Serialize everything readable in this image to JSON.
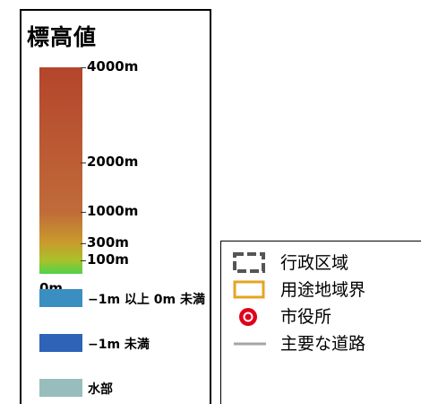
{
  "elevation_legend": {
    "title": "標高値",
    "gradient_stops": [
      {
        "elevation_m": 4000,
        "color": "#b4452b"
      },
      {
        "elevation_m": 1000,
        "color": "#c06b3a"
      },
      {
        "elevation_m": 300,
        "color": "#c99b2c"
      },
      {
        "elevation_m": 100,
        "color": "#a9c12b"
      },
      {
        "elevation_m": 0,
        "color": "#4fd34a"
      }
    ],
    "ticks": [
      {
        "label": "4000m",
        "elevation_m": 4000
      },
      {
        "label": "2000m",
        "elevation_m": 2000
      },
      {
        "label": "1000m",
        "elevation_m": 1000
      },
      {
        "label": "300m",
        "elevation_m": 300
      },
      {
        "label": "100m",
        "elevation_m": 100
      },
      {
        "label": "0m",
        "elevation_m": 0
      }
    ],
    "categories": [
      {
        "label": "−1m 以上 0m 未満",
        "color": "#3a8fc0"
      },
      {
        "label": "−1m 未満",
        "color": "#2e63b8"
      },
      {
        "label": "水部",
        "color": "#98bdbd"
      }
    ]
  },
  "symbol_legend": {
    "items": [
      {
        "label": "行政区域",
        "icon": "admin-boundary-icon",
        "color": "#555555"
      },
      {
        "label": "用途地域界",
        "icon": "zoning-boundary-icon",
        "color": "#e6a424"
      },
      {
        "label": "市役所",
        "icon": "city-hall-icon",
        "color": "#e0001b"
      },
      {
        "label": "主要な道路",
        "icon": "major-road-icon",
        "color": "#a6a6a6"
      }
    ]
  }
}
